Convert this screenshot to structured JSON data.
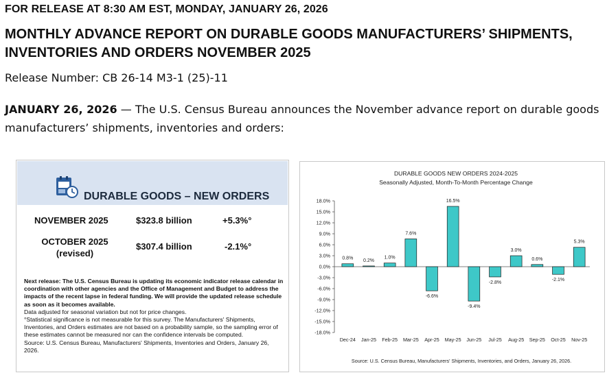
{
  "header": {
    "release_line": "FOR RELEASE AT 8:30 AM EST, MONDAY, JANUARY 26, 2026",
    "title_line1": "MONTHLY ADVANCE REPORT ON DURABLE GOODS MANUFACTURERS’ SHIPMENTS,",
    "title_line2": "INVENTORIES AND ORDERS NOVEMBER 2025",
    "release_number": "Release Number: CB 26-14 M3-1 (25)-11"
  },
  "intro": {
    "date": "JANUARY 26, 2026",
    "dash": " — ",
    "text": "The U.S. Census Bureau announces the November advance report on durable goods manufacturers’ shipments, inventories and orders:"
  },
  "summary": {
    "icon": "calendar-clock-icon",
    "title": "DURABLE GOODS – NEW ORDERS",
    "rows": [
      {
        "label": "NOVEMBER 2025",
        "value": "$323.8 billion",
        "change": "+5.3%°"
      },
      {
        "label": "OCTOBER 2025",
        "label_sub": "(revised)",
        "value": "$307.4 billion",
        "change": "-2.1%°"
      }
    ],
    "notes": {
      "next_release": "Next release:  The U.S. Census Bureau is updating its economic indicator release calendar in coordination with other agencies and the Office of Management and Budget to address the impacts of the recent lapse in federal funding.  We will provide the updated release schedule as soon as it becomes available.",
      "adjusted": "Data adjusted for seasonal variation but not for price changes.",
      "significance": "°Statistical significance is not measurable for this survey.  The Manufacturers' Shipments, Inventories, and Orders estimates are not based on a probability sample, so the sampling error of these estimates cannot be measured nor can the confidence intervals be computed.",
      "source": "Source: U.S. Census Bureau, Manufacturers' Shipments, Inventories and Orders, January 26, 2026."
    }
  },
  "chart_data": {
    "type": "bar",
    "title": "DURABLE GOODS NEW ORDERS 2024-2025",
    "subtitle": "Seasonally Adjusted,  Month-To-Month Percentage Change",
    "categories": [
      "Dec-24",
      "Jan-25",
      "Feb-25",
      "Mar-25",
      "Apr-25",
      "May-25",
      "Jun-25",
      "Jul-25",
      "Aug-25",
      "Sep-25",
      "Oct-25",
      "Nov-25"
    ],
    "values": [
      0.8,
      0.2,
      1.0,
      7.6,
      -6.6,
      16.5,
      -9.4,
      -2.8,
      3.0,
      0.6,
      -2.1,
      5.3
    ],
    "value_labels": [
      "0.8%",
      "0.2%",
      "1.0%",
      "7.6%",
      "-6.6%",
      "16.5%",
      "-9.4%",
      "-2.8%",
      "3.0%",
      "0.6%",
      "-2.1%",
      "5.3%"
    ],
    "yticks": [
      18.0,
      15.0,
      12.0,
      9.0,
      6.0,
      3.0,
      0.0,
      -3.0,
      -6.0,
      -9.0,
      -12.0,
      -15.0,
      -18.0
    ],
    "ytick_labels": [
      "18.0%",
      "15.0%",
      "12.0%",
      "9.0%",
      "6.0%",
      "3.0%",
      "0.0%",
      "-3.0%",
      "-6.0%",
      "-9.0%",
      "-12.0%",
      "-15.0%",
      "-18.0%"
    ],
    "ylim": [
      -18,
      18
    ],
    "source": "Source: U.S. Census Bureau, Manufacturers' Shipments, Inventories, and Orders, January 26, 2026.",
    "bar_color": "#3ec8c8"
  }
}
